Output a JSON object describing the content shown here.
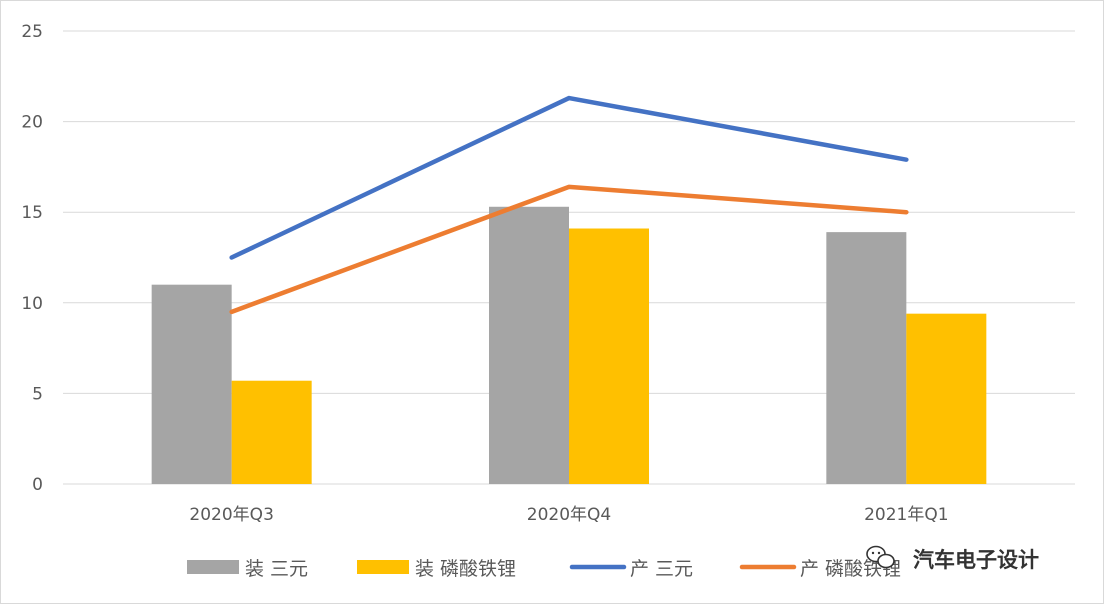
{
  "chart_data": {
    "type": "bar",
    "categories": [
      "2020年Q3",
      "2020年Q4",
      "2021年Q1"
    ],
    "ylim": [
      0,
      25
    ],
    "yticks": [
      0,
      5,
      10,
      15,
      20,
      25
    ],
    "grid": true,
    "legend_position": "bottom",
    "series": [
      {
        "name": "装 三元",
        "kind": "bar",
        "color": "#A5A5A5",
        "values": [
          11.0,
          15.3,
          13.9
        ]
      },
      {
        "name": "装 磷酸铁锂",
        "kind": "bar",
        "color": "#FFC000",
        "values": [
          5.7,
          14.1,
          9.4
        ]
      },
      {
        "name": "产 三元",
        "kind": "line",
        "color": "#4472C4",
        "values": [
          12.5,
          21.3,
          17.9
        ]
      },
      {
        "name": "产 磷酸铁锂",
        "kind": "line",
        "color": "#ED7D31",
        "values": [
          9.5,
          16.4,
          15.0
        ]
      }
    ]
  },
  "watermark": {
    "text": "汽车电子设计",
    "icon": "wechat-icon"
  }
}
